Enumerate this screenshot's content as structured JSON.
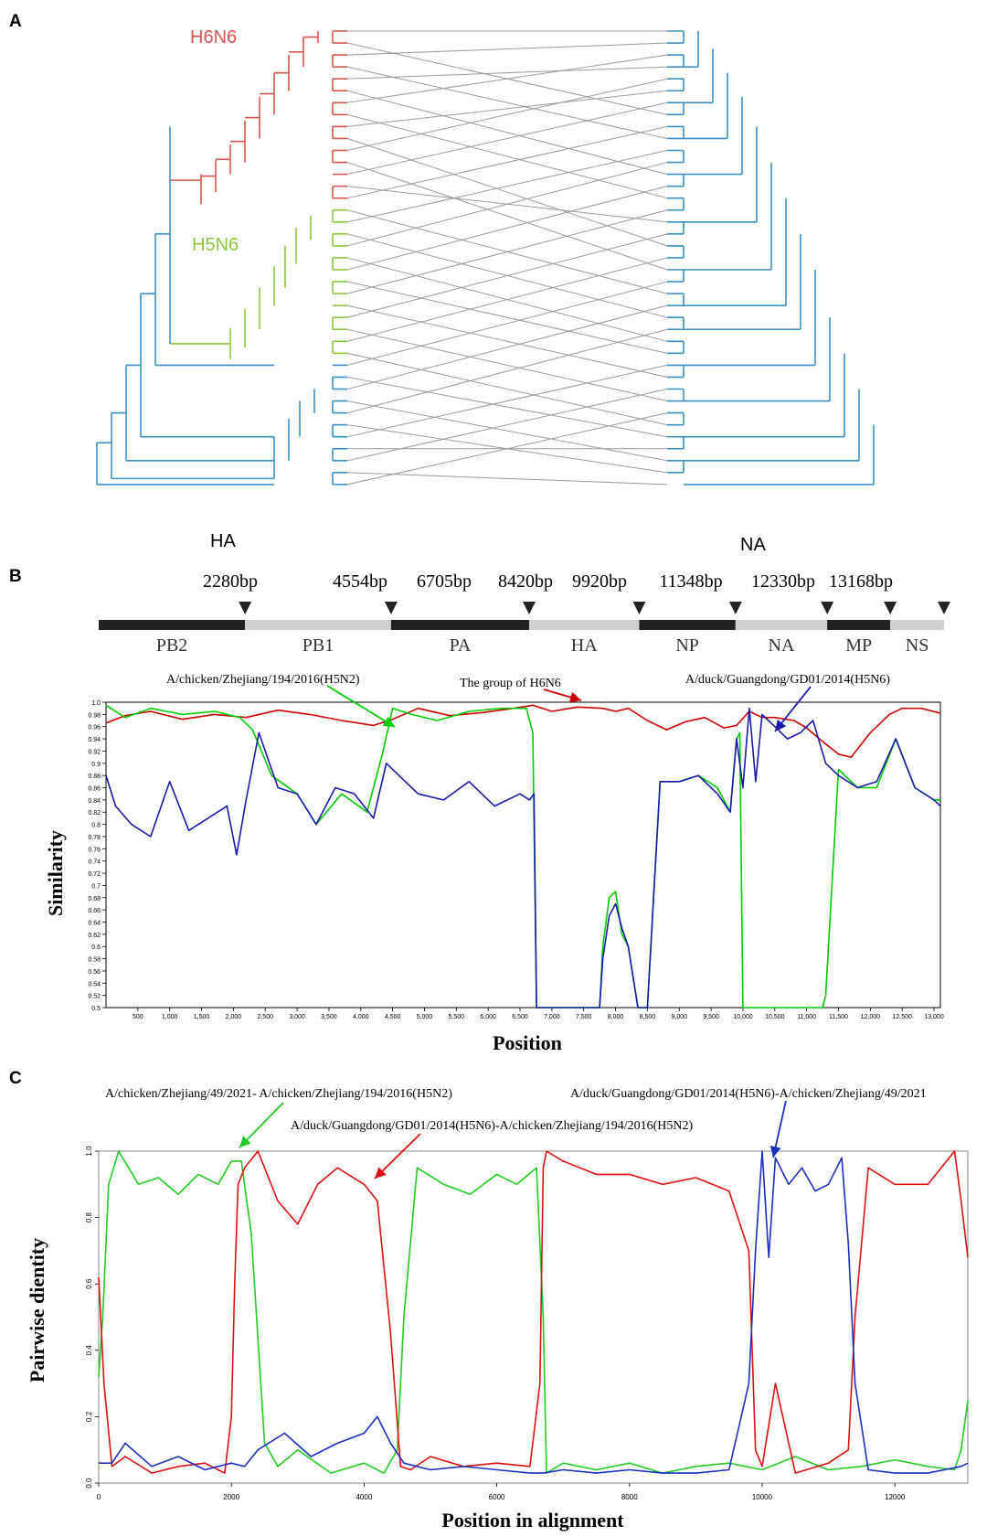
{
  "panel_a": {
    "letter": "A",
    "h6n6_label": "H6N6",
    "h5n6_label": "H5N6",
    "ha_label": "HA",
    "na_label": "NA",
    "colors": {
      "h6n6": "#d9534f",
      "h5n6": "#8dc63f",
      "other": "#3b8fc7",
      "link": "#9a9a9a"
    }
  },
  "panel_b": {
    "letter": "B",
    "breakpoints": [
      "2280bp",
      "4554bp",
      "6705bp",
      "8420bp",
      "9920bp",
      "11348bp",
      "12330bp",
      "13168bp"
    ],
    "segments": [
      "PB2",
      "PB1",
      "PA",
      "HA",
      "NP",
      "NA",
      "MP",
      "NS"
    ],
    "annotations": {
      "green": "A/chicken/Zhejiang/194/2016(H5N2)",
      "red": "The group of H6N6",
      "blue": "A/duck/Guangdong/GD01/2014(H5N6)"
    }
  },
  "panel_c": {
    "letter": "C",
    "annotations": {
      "green": "A/chicken/Zhejiang/49/2021- A/chicken/Zhejiang/194/2016(H5N2)",
      "red": "A/duck/Guangdong/GD01/2014(H5N6)-A/chicken/Zhejiang/194/2016(H5N2)",
      "blue": "A/duck/Guangdong/GD01/2014(H5N6)-A/chicken/Zhejiang/49/2021"
    }
  },
  "chart_data": [
    {
      "type": "line",
      "panel": "B",
      "xlabel": "Position",
      "ylabel": "Similarity",
      "xlim": [
        0,
        13100
      ],
      "ylim": [
        0.5,
        1.0
      ],
      "xticks": [
        "500",
        "1,000",
        "1,500",
        "2,000",
        "2,500",
        "3,000",
        "3,500",
        "4,000",
        "4,500",
        "5,000",
        "5,500",
        "6,000",
        "6,500",
        "7,000",
        "7,500",
        "8,000",
        "8,500",
        "9,000",
        "9,500",
        "10,000",
        "10,500",
        "11,000",
        "11,500",
        "12,000",
        "12,500",
        "13,000"
      ],
      "yticks": [
        "1.0",
        "0.98",
        "0.96",
        "0.94",
        "0.92",
        "0.9",
        "0.88",
        "0.86",
        "0.84",
        "0.82",
        "0.8",
        "0.78",
        "0.76",
        "0.74",
        "0.72",
        "0.7",
        "0.68",
        "0.66",
        "0.64",
        "0.62",
        "0.6",
        "0.58",
        "0.56",
        "0.54",
        "0.52",
        "0.5"
      ],
      "series": [
        {
          "color": "#cc0000",
          "x": [
            0,
            300,
            700,
            1200,
            1700,
            2200,
            2700,
            3200,
            3700,
            4200,
            4500,
            4900,
            5400,
            5900,
            6400,
            6700,
            7000,
            7400,
            7800,
            8000,
            8200,
            8500,
            8800,
            9100,
            9400,
            9700,
            9900,
            10100,
            10300,
            10500,
            10800,
            11000,
            11200,
            11500,
            11700,
            12000,
            12300,
            12500,
            12800,
            13100
          ],
          "y": [
            0.966,
            0.978,
            0.985,
            0.972,
            0.98,
            0.975,
            0.987,
            0.98,
            0.97,
            0.962,
            0.972,
            0.99,
            0.978,
            0.983,
            0.99,
            0.995,
            0.985,
            0.992,
            0.99,
            0.985,
            0.99,
            0.97,
            0.955,
            0.968,
            0.975,
            0.958,
            0.962,
            0.985,
            0.975,
            0.975,
            0.97,
            0.958,
            0.94,
            0.915,
            0.91,
            0.95,
            0.98,
            0.99,
            0.99,
            0.982
          ]
        },
        {
          "color": "#00cc00",
          "x": [
            0,
            300,
            700,
            1200,
            1700,
            2100,
            2300,
            2600,
            3000,
            3300,
            3700,
            4100,
            4350,
            4500,
            4800,
            5200,
            5700,
            6200,
            6600,
            6700,
            6760,
            6800,
            7750,
            7800,
            7900,
            8000,
            8100,
            8200,
            8350,
            8400,
            8500,
            8700,
            9000,
            9300,
            9600,
            9800,
            9900,
            9950,
            10000,
            10050,
            10300,
            10500,
            10800,
            11100,
            11250,
            11300,
            11500,
            11800,
            12100,
            12400,
            12700,
            13000,
            13100
          ],
          "y": [
            0.995,
            0.975,
            0.99,
            0.98,
            0.985,
            0.975,
            0.955,
            0.88,
            0.85,
            0.8,
            0.85,
            0.82,
            0.92,
            0.99,
            0.98,
            0.97,
            0.985,
            0.99,
            0.99,
            0.95,
            0.5,
            0.5,
            0.5,
            0.6,
            0.68,
            0.69,
            0.62,
            0.6,
            0.5,
            0.5,
            0.5,
            0.87,
            0.87,
            0.88,
            0.86,
            0.82,
            0.94,
            0.95,
            0.5,
            0.5,
            0.5,
            0.5,
            0.5,
            0.5,
            0.5,
            0.52,
            0.89,
            0.86,
            0.86,
            0.94,
            0.86,
            0.84,
            0.84
          ]
        },
        {
          "color": "#1a1aaa",
          "x": [
            0,
            150,
            400,
            700,
            1000,
            1300,
            1600,
            1900,
            2050,
            2200,
            2400,
            2700,
            3000,
            3300,
            3600,
            3900,
            4200,
            4400,
            4600,
            4900,
            5300,
            5700,
            6100,
            6500,
            6650,
            6720,
            6760,
            6800,
            7750,
            7800,
            7900,
            8000,
            8100,
            8200,
            8350,
            8400,
            8500,
            8700,
            9000,
            9300,
            9600,
            9800,
            9900,
            10000,
            10100,
            10200,
            10300,
            10500,
            10700,
            10900,
            11100,
            11300,
            11500,
            11800,
            12100,
            12400,
            12700,
            13000,
            13100
          ],
          "y": [
            0.88,
            0.83,
            0.8,
            0.78,
            0.87,
            0.79,
            0.81,
            0.83,
            0.75,
            0.84,
            0.95,
            0.86,
            0.85,
            0.8,
            0.86,
            0.85,
            0.81,
            0.9,
            0.88,
            0.85,
            0.84,
            0.87,
            0.83,
            0.85,
            0.84,
            0.85,
            0.5,
            0.5,
            0.5,
            0.58,
            0.65,
            0.67,
            0.63,
            0.6,
            0.5,
            0.5,
            0.5,
            0.87,
            0.87,
            0.88,
            0.85,
            0.82,
            0.94,
            0.86,
            0.99,
            0.87,
            0.98,
            0.96,
            0.94,
            0.95,
            0.97,
            0.9,
            0.88,
            0.86,
            0.87,
            0.94,
            0.86,
            0.84,
            0.83
          ]
        }
      ]
    },
    {
      "type": "line",
      "panel": "C",
      "xlabel": "Position in alignment",
      "ylabel": "Pairwise dientity",
      "xlim": [
        0,
        13100
      ],
      "ylim": [
        0,
        1.0
      ],
      "xticks": [
        "0",
        "2000",
        "4000",
        "6000",
        "8000",
        "10000",
        "12000"
      ],
      "yticks": [
        "0.0",
        "0.2",
        "0.4",
        "0.6",
        "0.8",
        "1.0"
      ],
      "series": [
        {
          "color": "#22cc22",
          "x": [
            0,
            60,
            150,
            300,
            600,
            900,
            1200,
            1500,
            1800,
            2000,
            2150,
            2300,
            2500,
            2700,
            3000,
            3500,
            4000,
            4300,
            4500,
            4600,
            4800,
            5200,
            5600,
            6000,
            6300,
            6600,
            6700,
            6750,
            7000,
            7500,
            8000,
            8500,
            9000,
            9500,
            10000,
            10500,
            11000,
            11500,
            12000,
            12500,
            12900,
            13000,
            13100
          ],
          "y": [
            0.32,
            0.5,
            0.9,
            1.0,
            0.9,
            0.92,
            0.87,
            0.93,
            0.9,
            0.97,
            0.97,
            0.75,
            0.12,
            0.05,
            0.1,
            0.03,
            0.06,
            0.03,
            0.1,
            0.5,
            0.95,
            0.9,
            0.87,
            0.93,
            0.9,
            0.95,
            0.5,
            0.03,
            0.06,
            0.04,
            0.06,
            0.03,
            0.05,
            0.06,
            0.04,
            0.08,
            0.04,
            0.05,
            0.07,
            0.05,
            0.04,
            0.1,
            0.25
          ]
        },
        {
          "color": "#dd1111",
          "x": [
            0,
            80,
            200,
            400,
            800,
            1200,
            1600,
            1900,
            2000,
            2050,
            2100,
            2200,
            2400,
            2700,
            3000,
            3300,
            3600,
            4000,
            4200,
            4400,
            4550,
            4700,
            5000,
            5500,
            6000,
            6500,
            6650,
            6700,
            6750,
            7000,
            7500,
            8000,
            8500,
            9000,
            9500,
            9800,
            9900,
            10000,
            10200,
            10500,
            11000,
            11300,
            11400,
            11600,
            12000,
            12500,
            12900,
            13000,
            13100
          ],
          "y": [
            0.62,
            0.3,
            0.05,
            0.08,
            0.03,
            0.05,
            0.06,
            0.03,
            0.2,
            0.6,
            0.9,
            0.95,
            1.0,
            0.85,
            0.78,
            0.9,
            0.95,
            0.9,
            0.85,
            0.45,
            0.05,
            0.04,
            0.08,
            0.05,
            0.06,
            0.05,
            0.3,
            0.95,
            1.0,
            0.97,
            0.93,
            0.93,
            0.9,
            0.92,
            0.88,
            0.7,
            0.1,
            0.05,
            0.3,
            0.03,
            0.06,
            0.1,
            0.5,
            0.95,
            0.9,
            0.9,
            1.0,
            0.85,
            0.68
          ]
        },
        {
          "color": "#1f2fbf",
          "x": [
            0,
            200,
            400,
            800,
            1200,
            1600,
            2000,
            2200,
            2400,
            2800,
            3200,
            3600,
            4000,
            4200,
            4400,
            4600,
            5000,
            5500,
            6000,
            6500,
            6700,
            7000,
            7500,
            8000,
            8500,
            9000,
            9500,
            9800,
            9900,
            10000,
            10100,
            10200,
            10400,
            10600,
            10800,
            11000,
            11200,
            11300,
            11400,
            11600,
            12000,
            12500,
            13000,
            13100
          ],
          "y": [
            0.06,
            0.06,
            0.12,
            0.05,
            0.08,
            0.04,
            0.06,
            0.05,
            0.1,
            0.15,
            0.08,
            0.12,
            0.15,
            0.2,
            0.12,
            0.06,
            0.04,
            0.05,
            0.04,
            0.03,
            0.03,
            0.04,
            0.03,
            0.04,
            0.03,
            0.03,
            0.04,
            0.3,
            0.7,
            1.0,
            0.68,
            0.98,
            0.9,
            0.95,
            0.88,
            0.9,
            0.98,
            0.72,
            0.3,
            0.04,
            0.03,
            0.03,
            0.05,
            0.06
          ]
        }
      ]
    }
  ]
}
